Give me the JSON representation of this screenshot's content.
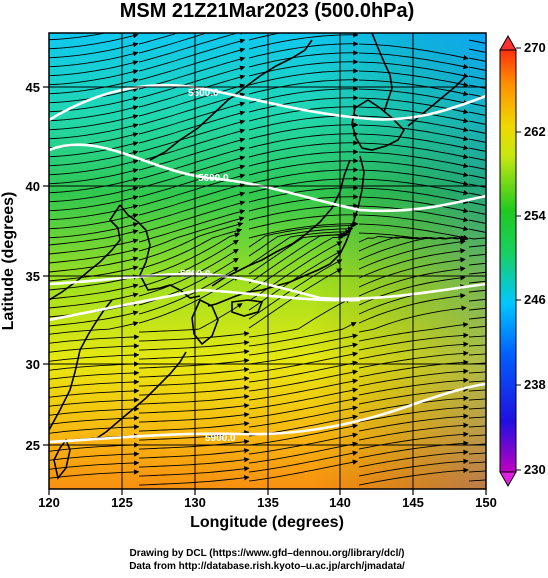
{
  "title": "MSM 21Z21Mar2023 (500.0hPa)",
  "x_axis": {
    "label": "Longitude (degrees)",
    "ticks": [
      "120",
      "125",
      "130",
      "135",
      "140",
      "145",
      "150"
    ],
    "range": [
      120,
      150
    ]
  },
  "y_axis": {
    "label": "Latitude  (degrees)",
    "ticks": [
      "25",
      "30",
      "35",
      "40",
      "45"
    ],
    "range": [
      22.4,
      47.6
    ]
  },
  "colorbar": {
    "ticks": [
      "230",
      "238",
      "246",
      "254",
      "262",
      "270"
    ],
    "range": [
      230,
      270
    ],
    "colors": {
      "low": "#c000c0",
      "mid_low": "#1020e0",
      "cyan": "#00c8ff",
      "green": "#18c818",
      "yellow": "#f0f000",
      "orange": "#ff9000",
      "high": "#ff2000"
    }
  },
  "contours": [
    {
      "label": "5500.0",
      "lat": 45.6
    },
    {
      "label": "5600.0",
      "lat": 40.9
    },
    {
      "label": "5800.0",
      "lat": 35.4
    },
    {
      "label": "5900.0",
      "lat": 25.8
    }
  ],
  "credits": {
    "line1": "Drawing by DCL (https://www.gfd–dennou.org/library/dcl/)",
    "line2": "Data from http://database.rish.kyoto–u.ac.jp/arch/jmadata/"
  },
  "icons": [
    "colorbar-up-arrow-icon",
    "colorbar-down-arrow-icon"
  ]
}
